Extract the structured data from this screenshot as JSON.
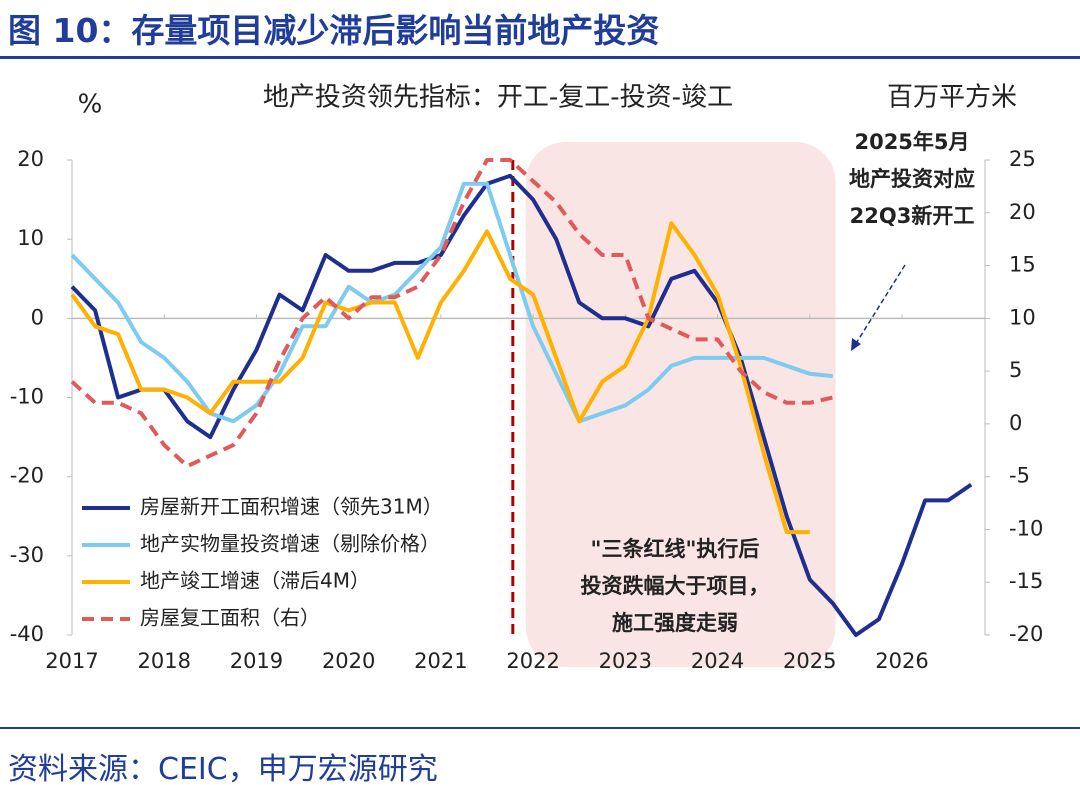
{
  "header": {
    "title": "图 10：存量项目减少滞后影响当前地产投资"
  },
  "chart_data": {
    "type": "line",
    "subtitle": "地产投资领先指标：开工-复工-投资-竣工",
    "ylabel": "%",
    "y2label": "百万平方米",
    "x": [
      2017.0,
      2017.25,
      2017.5,
      2017.75,
      2018.0,
      2018.25,
      2018.5,
      2018.75,
      2019.0,
      2019.25,
      2019.5,
      2019.75,
      2020.0,
      2020.25,
      2020.5,
      2020.75,
      2021.0,
      2021.25,
      2021.5,
      2021.75,
      2022.0,
      2022.25,
      2022.5,
      2022.75,
      2023.0,
      2023.25,
      2023.5,
      2023.75,
      2024.0,
      2024.25,
      2024.5,
      2024.75,
      2025.0,
      2025.25,
      2025.5,
      2025.75,
      2026.0,
      2026.25,
      2026.5,
      2026.75
    ],
    "xlim": [
      2017.0,
      2026.9
    ],
    "xticks": [
      2017,
      2018,
      2019,
      2020,
      2021,
      2022,
      2023,
      2024,
      2025,
      2026
    ],
    "ylim": [
      -40,
      20
    ],
    "yticks": [
      -40,
      -30,
      -20,
      -10,
      0,
      10,
      20
    ],
    "y2lim": [
      -20,
      25
    ],
    "y2ticks": [
      -20,
      -15,
      -10,
      -5,
      0,
      5,
      10,
      15,
      20,
      25
    ],
    "series": [
      {
        "name": "房屋新开工面积增速（领先31M）",
        "color": "#1f2f8f",
        "values": [
          4,
          1,
          -10,
          -9,
          -9,
          -13,
          -15,
          -9,
          -4,
          3,
          1,
          8,
          6,
          6,
          7,
          7,
          8,
          13,
          17,
          18,
          15,
          10,
          2,
          0,
          0,
          -1,
          5,
          6,
          2,
          -5,
          -15,
          -25,
          -33,
          -36,
          -40,
          -38,
          -31,
          -23,
          -23,
          -21
        ]
      },
      {
        "name": "地产实物量投资增速（剔除价格）",
        "color": "#7ecbf0",
        "values": [
          8,
          5,
          2,
          -3,
          -5,
          -8,
          -12,
          -13,
          -11,
          -7,
          -1,
          -1,
          4,
          2,
          3,
          6,
          9,
          17,
          17,
          8,
          -1,
          -7,
          -13,
          -12,
          -11,
          -9,
          -6,
          -5,
          -5,
          -5,
          -5,
          -6,
          -7,
          -7.3,
          null,
          null,
          null,
          null,
          null,
          null
        ]
      },
      {
        "name": "地产竣工增速（滞后4M）",
        "color": "#ffb000",
        "values": [
          3,
          -1,
          -2,
          -9,
          -9,
          -10,
          -12,
          -8,
          -8,
          -8,
          -5,
          2,
          1,
          2,
          2,
          -5,
          2,
          6,
          11,
          5,
          3,
          -5,
          -13,
          -8,
          -6,
          0,
          12,
          8,
          3,
          -6,
          -17,
          -27,
          -27,
          null,
          null,
          null,
          null,
          null,
          null,
          null
        ]
      },
      {
        "name": "房屋复工面积（右）",
        "color": "#e05a5a",
        "dashed": true,
        "axis": "y2",
        "values": [
          4,
          2,
          2,
          1,
          -2,
          -4,
          -3,
          -2,
          1,
          6,
          10,
          12,
          10,
          12,
          12,
          13,
          16,
          21,
          25,
          25,
          23,
          21,
          18,
          16,
          16,
          10,
          9,
          8,
          8,
          5,
          3,
          2,
          2,
          2.5,
          null,
          null,
          null,
          null,
          null,
          null
        ]
      }
    ],
    "shade": [
      2021.92,
      2025.28
    ],
    "vline": 2021.78,
    "annotations": [
      {
        "lines": [
          "2025年5月",
          "地产投资对应",
          "22Q3新开工"
        ],
        "color": "#1f2f8f"
      },
      {
        "lines": [
          "\"三条红线\"执行后",
          "投资跌幅大于项目，",
          "施工强度走弱"
        ],
        "color": "#c00000"
      }
    ]
  },
  "footer": {
    "source": "资料来源：CEIC，申万宏源研究"
  }
}
